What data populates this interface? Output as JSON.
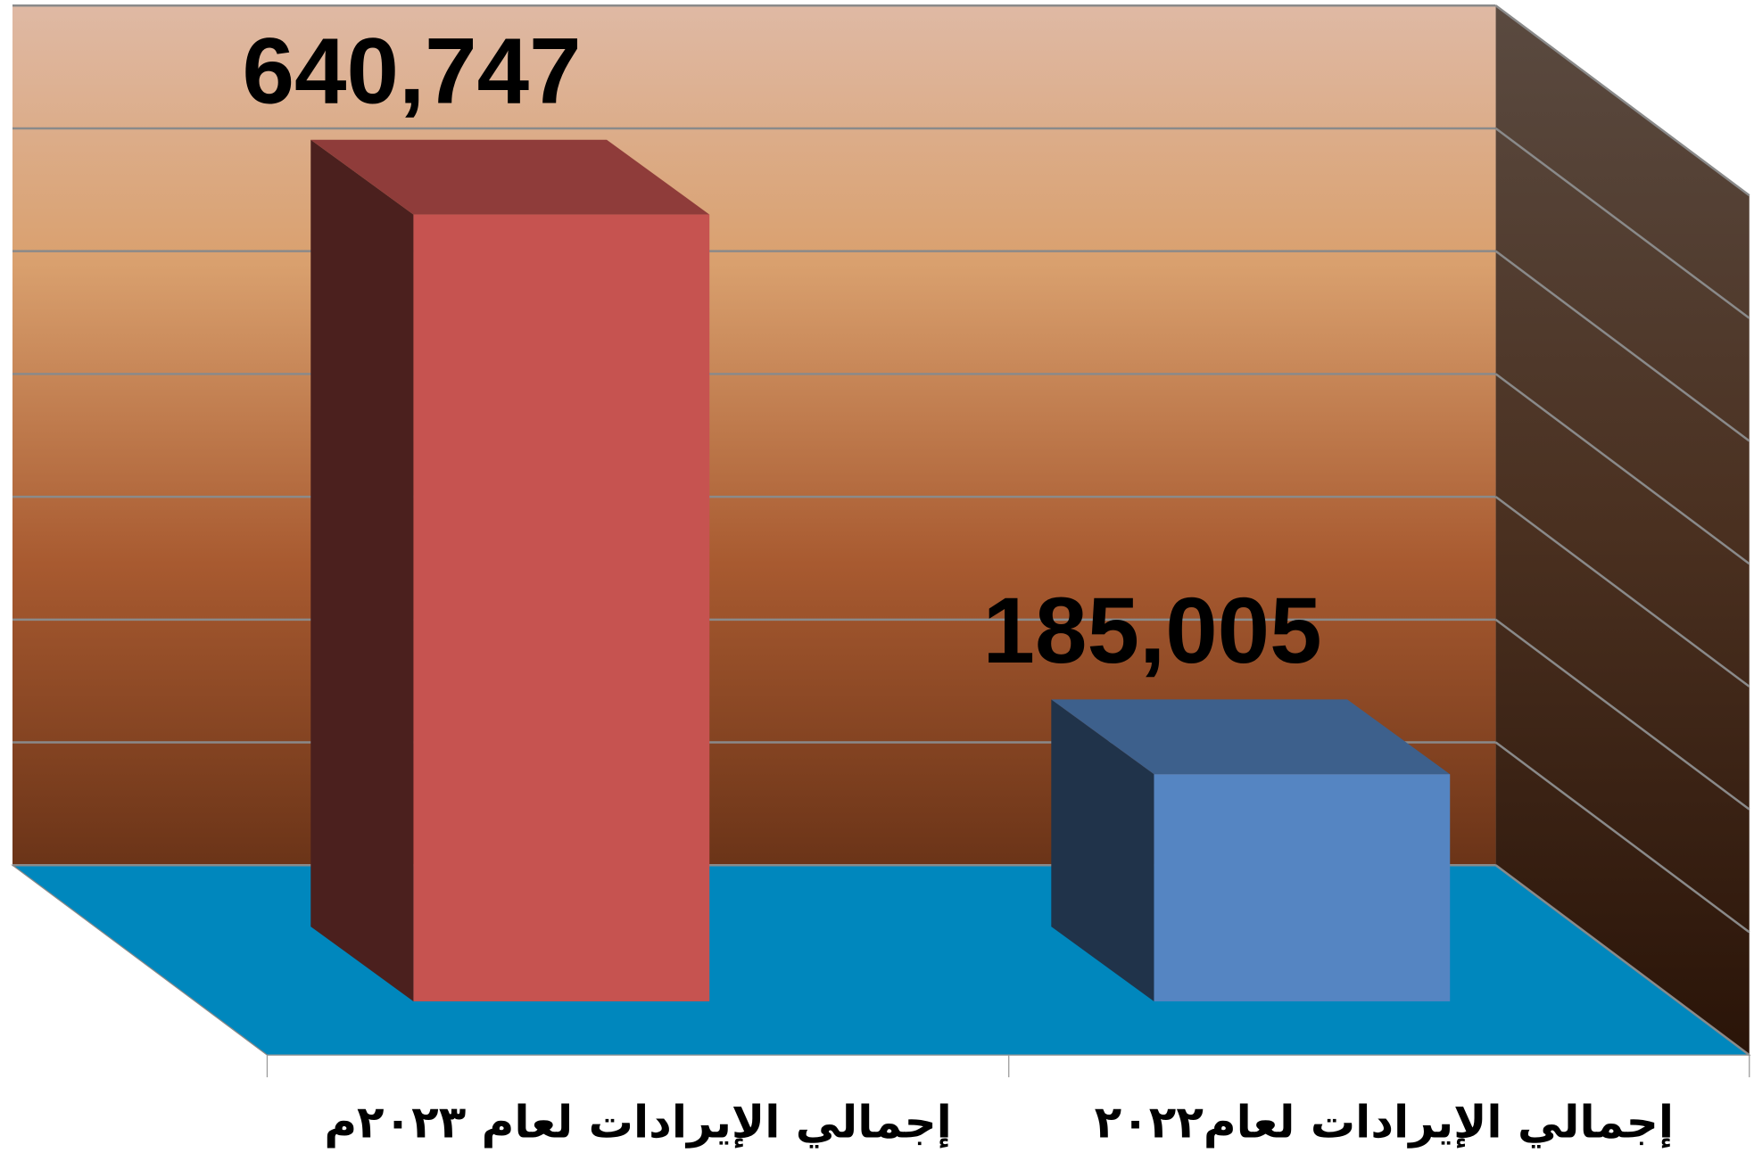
{
  "chart_data": {
    "type": "bar3d",
    "categories": [
      "إجمالي الإيرادات لعام ٢٠٢٣م",
      "إجمالي الإيرادات لعام٢٠٢٢"
    ],
    "values": [
      640747,
      185005
    ],
    "value_labels": [
      "640,747",
      "185,005"
    ],
    "colors": [
      "#c65350",
      "#5585c2"
    ],
    "ylim": [
      0,
      700000
    ],
    "yticks": [
      0,
      100000,
      200000,
      300000,
      400000,
      500000,
      600000,
      700000
    ],
    "grid": true
  }
}
